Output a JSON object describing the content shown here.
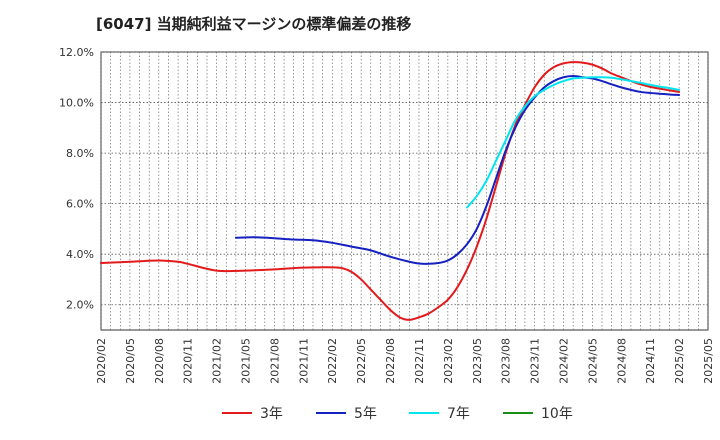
{
  "chart_data": {
    "type": "line",
    "title": "[6047]  当期純利益マージンの標準偏差の推移",
    "xlabel": "",
    "ylabel": "",
    "xlim": [
      "2020/02",
      "2025/05"
    ],
    "ylim": [
      1.0,
      12.0
    ],
    "yticks": [
      {
        "value": 2.0,
        "label": "2.0%"
      },
      {
        "value": 4.0,
        "label": "4.0%"
      },
      {
        "value": 6.0,
        "label": "6.0%"
      },
      {
        "value": 8.0,
        "label": "8.0%"
      },
      {
        "value": 10.0,
        "label": "10.0%"
      },
      {
        "value": 12.0,
        "label": "12.0%"
      }
    ],
    "xticks": [
      "2020/02",
      "2020/05",
      "2020/08",
      "2020/11",
      "2021/02",
      "2021/05",
      "2021/08",
      "2021/11",
      "2022/02",
      "2022/05",
      "2022/08",
      "2022/11",
      "2023/02",
      "2023/05",
      "2023/08",
      "2023/11",
      "2024/02",
      "2024/05",
      "2024/08",
      "2024/11",
      "2025/02",
      "2025/05"
    ],
    "grid": true,
    "legend_position": "bottom",
    "series": [
      {
        "name": "3年",
        "color": "#e31a1c",
        "points": [
          [
            "2020/02",
            3.65
          ],
          [
            "2020/05",
            3.7
          ],
          [
            "2020/08",
            3.75
          ],
          [
            "2020/10",
            3.7
          ],
          [
            "2020/11",
            3.62
          ],
          [
            "2021/02",
            3.35
          ],
          [
            "2021/05",
            3.35
          ],
          [
            "2021/08",
            3.4
          ],
          [
            "2021/10",
            3.45
          ],
          [
            "2021/11",
            3.47
          ],
          [
            "2022/02",
            3.48
          ],
          [
            "2022/03",
            3.45
          ],
          [
            "2022/04",
            3.3
          ],
          [
            "2022/05",
            3.0
          ],
          [
            "2022/06",
            2.6
          ],
          [
            "2022/07",
            2.2
          ],
          [
            "2022/08",
            1.8
          ],
          [
            "2022/09",
            1.5
          ],
          [
            "2022/10",
            1.4
          ],
          [
            "2022/11",
            1.5
          ],
          [
            "2022/12",
            1.65
          ],
          [
            "2023/01",
            1.9
          ],
          [
            "2023/02",
            2.2
          ],
          [
            "2023/03",
            2.7
          ],
          [
            "2023/04",
            3.4
          ],
          [
            "2023/05",
            4.3
          ],
          [
            "2023/06",
            5.4
          ],
          [
            "2023/07",
            6.7
          ],
          [
            "2023/08",
            8.0
          ],
          [
            "2023/09",
            9.1
          ],
          [
            "2023/10",
            9.9
          ],
          [
            "2023/11",
            10.6
          ],
          [
            "2023/12",
            11.1
          ],
          [
            "2024/01",
            11.4
          ],
          [
            "2024/02",
            11.55
          ],
          [
            "2024/03",
            11.6
          ],
          [
            "2024/04",
            11.58
          ],
          [
            "2024/05",
            11.5
          ],
          [
            "2024/06",
            11.35
          ],
          [
            "2024/07",
            11.15
          ],
          [
            "2024/08",
            11.0
          ],
          [
            "2024/09",
            10.85
          ],
          [
            "2024/10",
            10.72
          ],
          [
            "2024/11",
            10.62
          ],
          [
            "2024/12",
            10.55
          ],
          [
            "2025/01",
            10.48
          ],
          [
            "2025/02",
            10.42
          ]
        ]
      },
      {
        "name": "5年",
        "color": "#1520c0",
        "points": [
          [
            "2021/04",
            4.65
          ],
          [
            "2021/06",
            4.67
          ],
          [
            "2021/08",
            4.63
          ],
          [
            "2021/10",
            4.58
          ],
          [
            "2021/12",
            4.55
          ],
          [
            "2022/02",
            4.45
          ],
          [
            "2022/04",
            4.3
          ],
          [
            "2022/06",
            4.15
          ],
          [
            "2022/08",
            3.9
          ],
          [
            "2022/10",
            3.7
          ],
          [
            "2022/11",
            3.63
          ],
          [
            "2022/12",
            3.62
          ],
          [
            "2023/01",
            3.65
          ],
          [
            "2023/02",
            3.75
          ],
          [
            "2023/03",
            4.0
          ],
          [
            "2023/04",
            4.4
          ],
          [
            "2023/05",
            5.0
          ],
          [
            "2023/06",
            5.9
          ],
          [
            "2023/07",
            7.0
          ],
          [
            "2023/08",
            8.1
          ],
          [
            "2023/09",
            9.0
          ],
          [
            "2023/10",
            9.7
          ],
          [
            "2023/11",
            10.2
          ],
          [
            "2023/12",
            10.6
          ],
          [
            "2024/01",
            10.85
          ],
          [
            "2024/02",
            11.0
          ],
          [
            "2024/03",
            11.05
          ],
          [
            "2024/04",
            11.0
          ],
          [
            "2024/05",
            10.95
          ],
          [
            "2024/06",
            10.85
          ],
          [
            "2024/07",
            10.72
          ],
          [
            "2024/08",
            10.6
          ],
          [
            "2024/09",
            10.5
          ],
          [
            "2024/10",
            10.42
          ],
          [
            "2024/11",
            10.38
          ],
          [
            "2024/12",
            10.35
          ],
          [
            "2025/01",
            10.32
          ],
          [
            "2025/02",
            10.3
          ]
        ]
      },
      {
        "name": "7年",
        "color": "#00e5ee",
        "points": [
          [
            "2023/04",
            5.85
          ],
          [
            "2023/05",
            6.3
          ],
          [
            "2023/06",
            6.9
          ],
          [
            "2023/07",
            7.7
          ],
          [
            "2023/08",
            8.5
          ],
          [
            "2023/09",
            9.3
          ],
          [
            "2023/10",
            9.85
          ],
          [
            "2023/11",
            10.25
          ],
          [
            "2023/12",
            10.5
          ],
          [
            "2024/01",
            10.7
          ],
          [
            "2024/02",
            10.85
          ],
          [
            "2024/03",
            10.95
          ],
          [
            "2024/04",
            10.98
          ],
          [
            "2024/05",
            11.0
          ],
          [
            "2024/06",
            11.0
          ],
          [
            "2024/07",
            10.98
          ],
          [
            "2024/08",
            10.92
          ],
          [
            "2024/09",
            10.85
          ],
          [
            "2024/10",
            10.78
          ],
          [
            "2024/11",
            10.7
          ],
          [
            "2024/12",
            10.63
          ],
          [
            "2025/01",
            10.57
          ],
          [
            "2025/02",
            10.5
          ]
        ]
      },
      {
        "name": "10年",
        "color": "#1a8c1a",
        "points": []
      }
    ]
  }
}
